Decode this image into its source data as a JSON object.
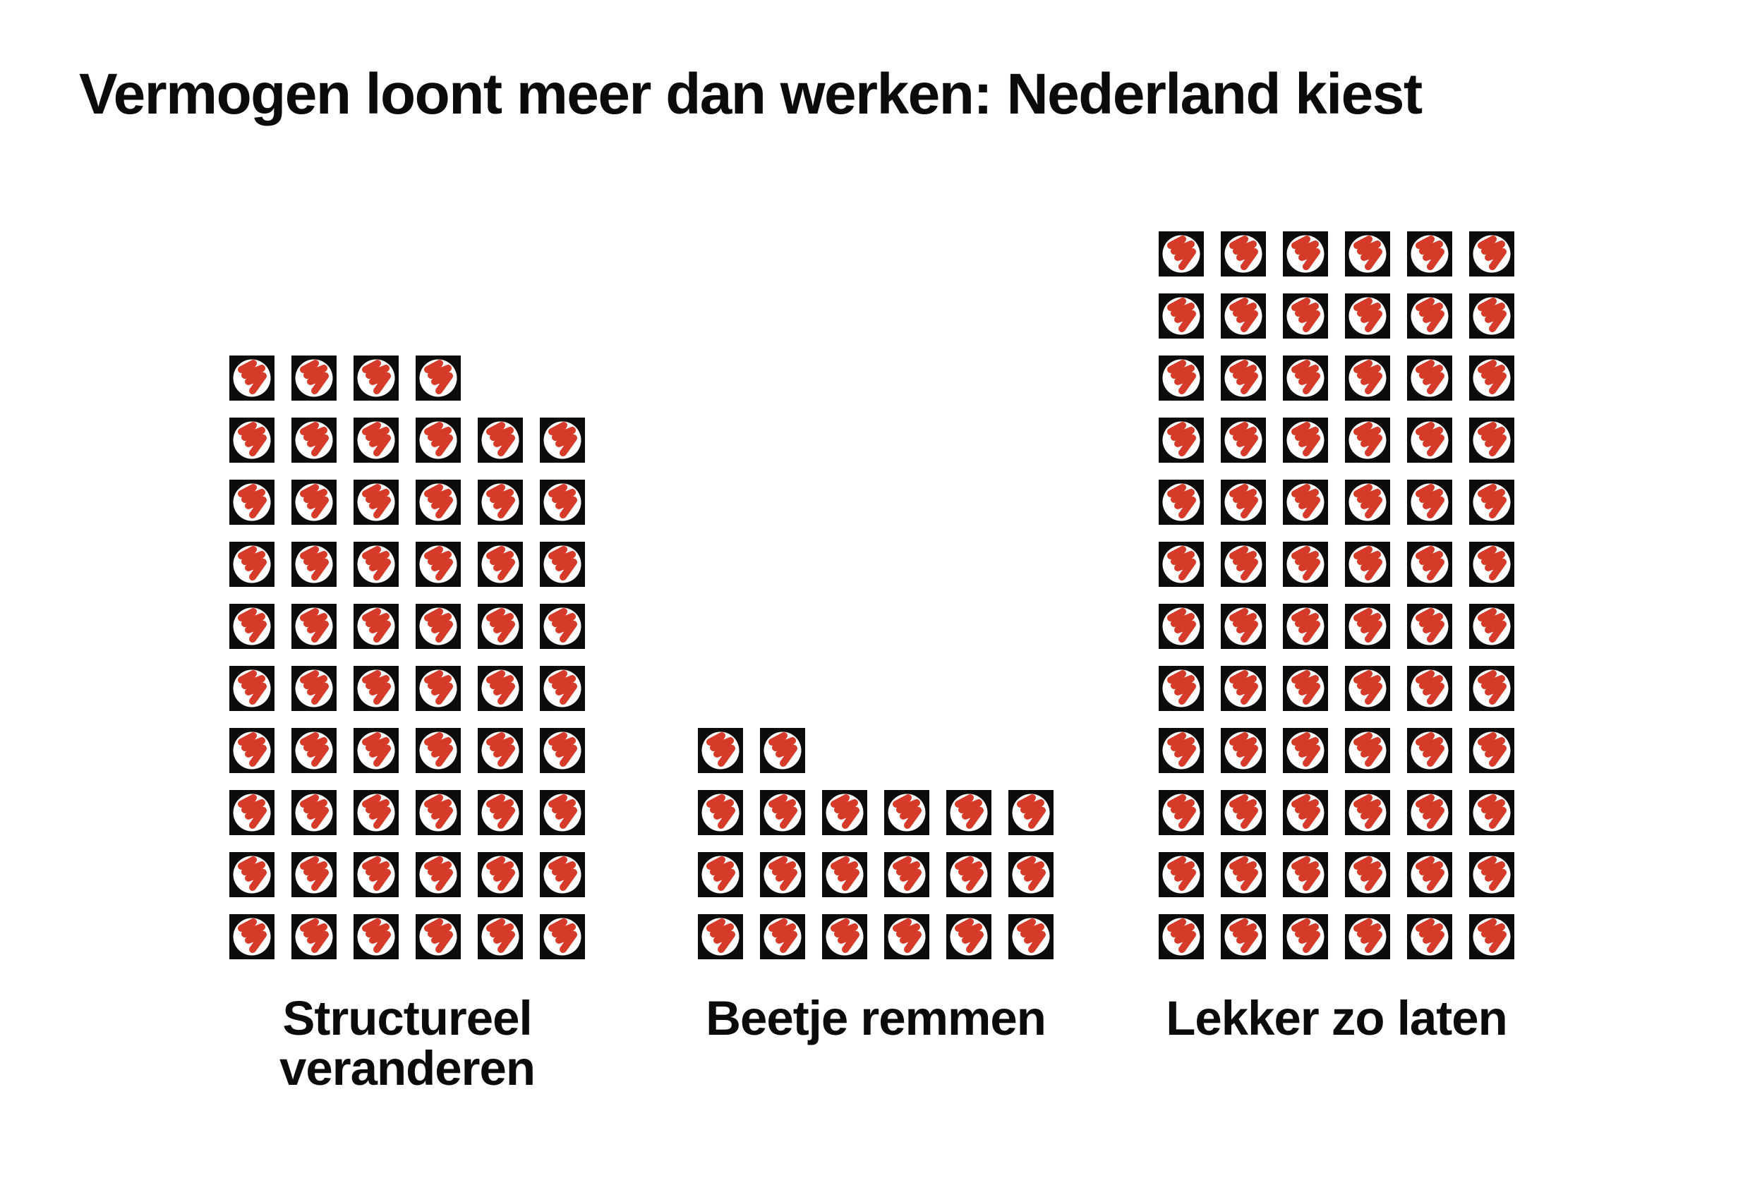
{
  "title": "Vermogen loont meer dan werken: Nederland kiest",
  "chart_data": {
    "type": "pictogram",
    "subtype": "waffle-isotype",
    "title": "Vermogen loont meer dan werken: Nederland kiest",
    "categories": [
      "Structureel veranderen",
      "Beetje remmen",
      "Lekker zo laten"
    ],
    "values": [
      58,
      20,
      72
    ],
    "total_icons": 150,
    "columns_per_group": 6,
    "fill_direction": "bottom-up, partial top row aligned left",
    "icon_meaning": "ballot-scribble-icon (red pencil mark in white voting circle on black square)",
    "legend": "none",
    "axes": "none"
  },
  "groups": [
    {
      "label": "Structureel\nveranderen",
      "count": 58
    },
    {
      "label": "Beetje remmen",
      "count": 20
    },
    {
      "label": "Lekker zo laten",
      "count": 72
    }
  ],
  "icon_colors": {
    "square": "#0c0c0c",
    "circle": "#ffffff",
    "mark": "#d63a28"
  },
  "page_colors": {
    "background": "#ffffff",
    "text": "#0b0b0b"
  }
}
